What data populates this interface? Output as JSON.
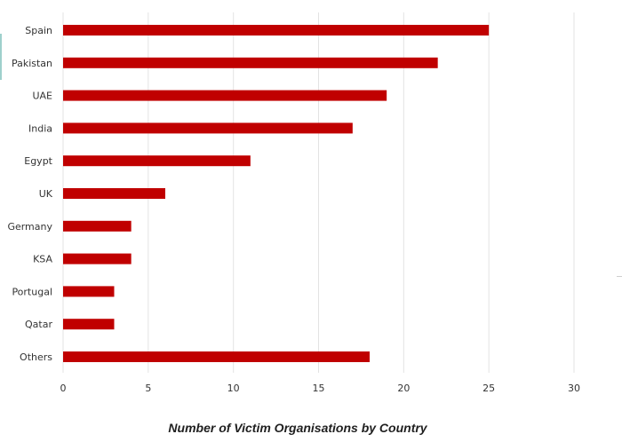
{
  "chart_data": {
    "type": "bar",
    "orientation": "horizontal",
    "title": "Number of Victim Organisations by Country",
    "categories": [
      "Spain",
      "Pakistan",
      "UAE",
      "India",
      "Egypt",
      "UK",
      "Germany",
      "KSA",
      "Portugal",
      "Qatar",
      "Others"
    ],
    "values": [
      25,
      22,
      19,
      17,
      11,
      6,
      4,
      4,
      3,
      3,
      18
    ],
    "xlim": [
      0,
      30
    ],
    "xticks": [
      "0",
      "5",
      "10",
      "15",
      "20",
      "25",
      "30"
    ],
    "xlabel": "",
    "ylabel": "",
    "grid": "vertical",
    "legend": "none",
    "bar_color": "#c00000"
  }
}
